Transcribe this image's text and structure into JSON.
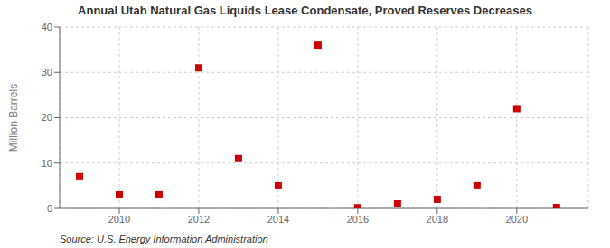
{
  "chart_data": {
    "type": "scatter",
    "title": "Annual Utah Natural Gas Liquids Lease Condensate, Proved Reserves Decreases",
    "ylabel": "Million Barrels",
    "annotations": [
      "Source: U.S. Energy Information Administration"
    ],
    "x": [
      2009,
      2010,
      2011,
      2012,
      2013,
      2014,
      2015,
      2016,
      2017,
      2018,
      2019,
      2020,
      2021
    ],
    "values": [
      7.0,
      3.0,
      3.0,
      31.0,
      11.0,
      5.0,
      36.0,
      0.15,
      1.0,
      2.0,
      5.0,
      22.0,
      0.2
    ],
    "color": "#cc0000",
    "marker": "square",
    "xlim": [
      2008.5,
      2021.8
    ],
    "xticks": [
      2010,
      2012,
      2014,
      2016,
      2018,
      2020
    ],
    "ylim": [
      0,
      40
    ],
    "yticks": [
      0,
      10,
      20,
      30,
      40
    ],
    "grid": true
  }
}
